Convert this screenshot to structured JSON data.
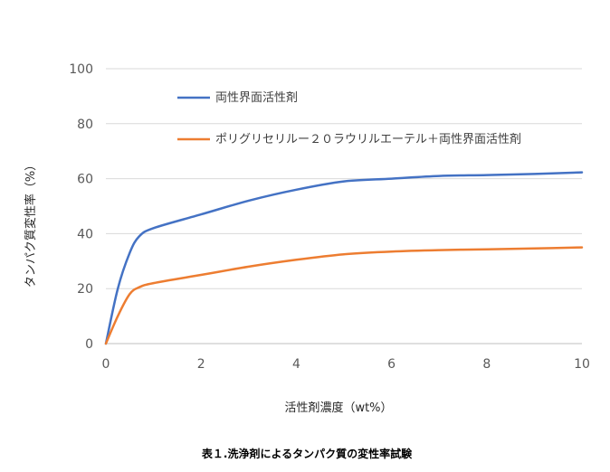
{
  "chart_data": {
    "type": "line",
    "title": "",
    "caption": "表１.洗浄剤によるタンパク質の変性率試験",
    "xlabel": "活性剤濃度（wt%）",
    "ylabel": "タンパク質変性率（%）",
    "xlim": [
      0,
      10
    ],
    "ylim": [
      0,
      100
    ],
    "x_ticks": [
      "0",
      "2",
      "4",
      "6",
      "8",
      "10"
    ],
    "y_ticks": [
      "0",
      "20",
      "40",
      "60",
      "80",
      "100"
    ],
    "grid": "horizontal",
    "legend_position": "top-right (inside plot)",
    "series": [
      {
        "name": "両性界面活性剤",
        "color": "#4472C4",
        "x": [
          0,
          0.25,
          0.5,
          0.7,
          1.0,
          2.0,
          3.0,
          4.0,
          5.0,
          6.0,
          7.0,
          8.0,
          9.0,
          10.0
        ],
        "y": [
          0,
          20,
          33,
          39,
          42,
          47,
          52,
          56,
          59,
          60,
          61,
          61.3,
          61.7,
          62.3
        ]
      },
      {
        "name": "ポリグリセリルー２０ラウリルエーテル＋両性界面活性剤",
        "color": "#ED7D31",
        "x": [
          0,
          0.25,
          0.5,
          0.7,
          1.0,
          2.0,
          3.0,
          4.0,
          5.0,
          6.0,
          7.0,
          8.0,
          9.0,
          10.0
        ],
        "y": [
          0,
          10,
          18,
          20.5,
          22,
          25,
          28,
          30.5,
          32.5,
          33.5,
          34,
          34.3,
          34.6,
          35
        ]
      }
    ]
  }
}
